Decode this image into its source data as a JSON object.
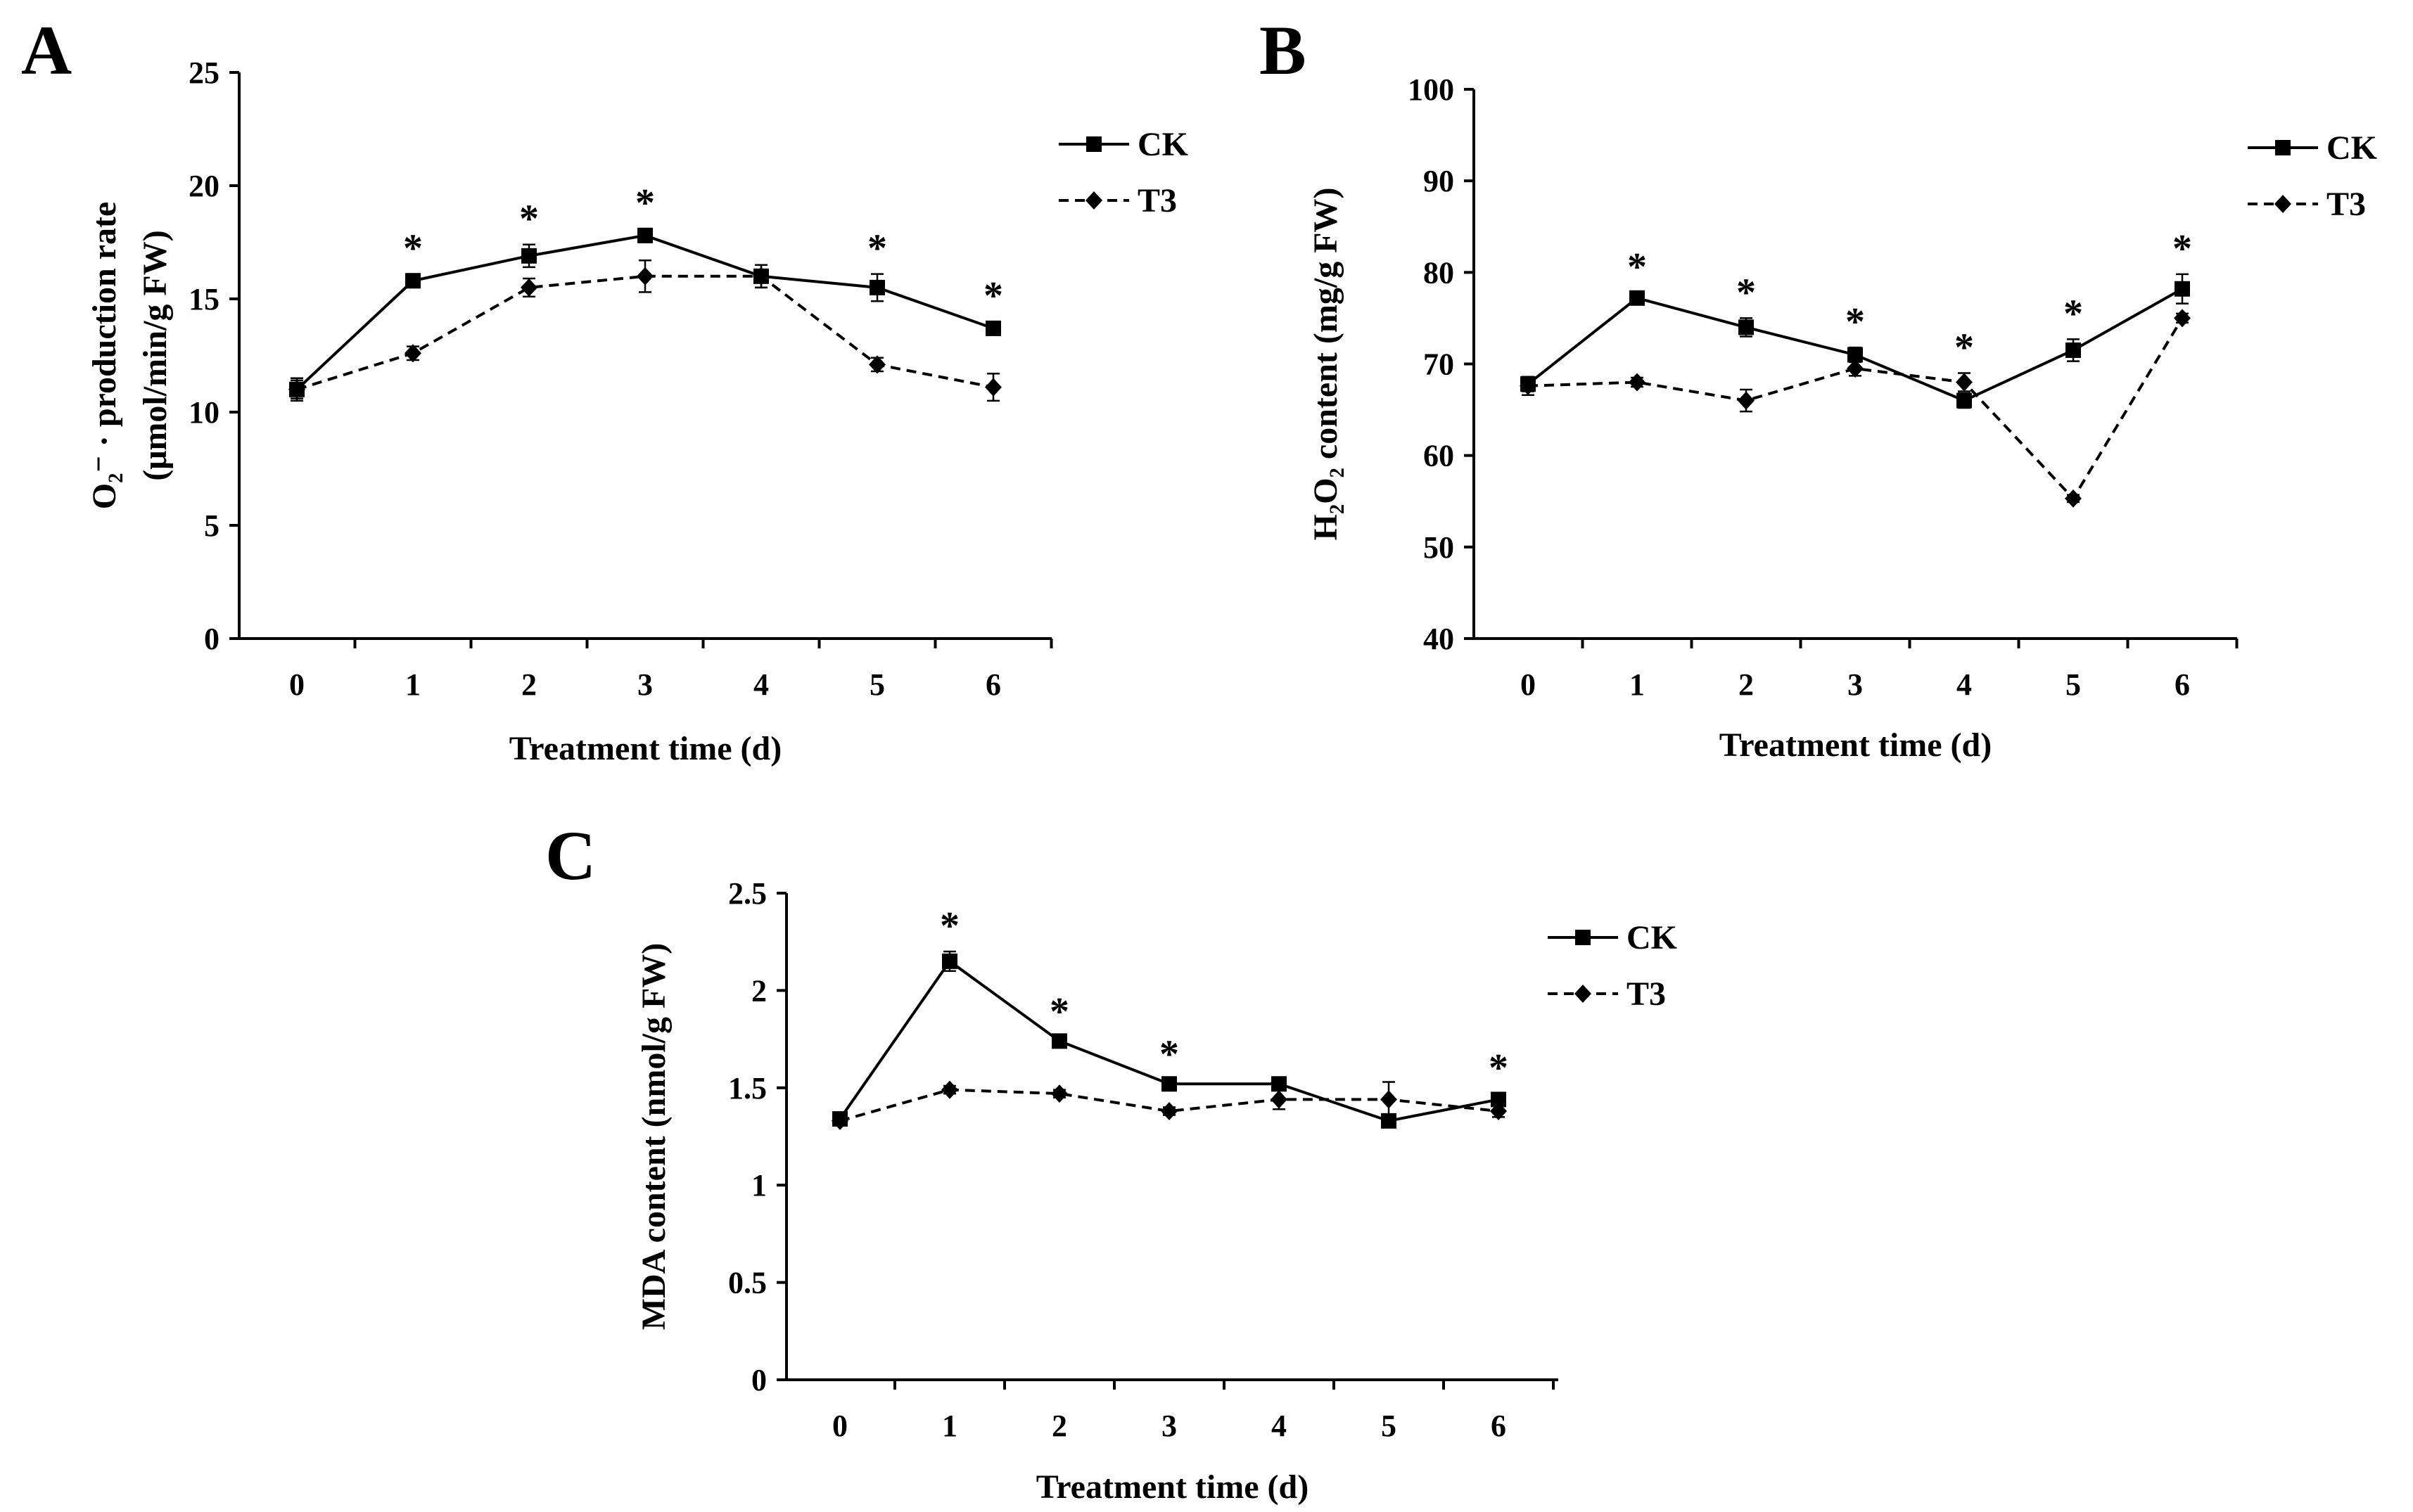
{
  "chart_data": [
    {
      "panel": "A",
      "type": "line",
      "x": [
        0,
        1,
        2,
        3,
        4,
        5,
        6
      ],
      "xlabel": "Treatment time (d)",
      "ylabel_line1": "O₂⁻ · production rate",
      "ylabel_line2": "(μmol/min/g FW)",
      "ylim": [
        0,
        25
      ],
      "yticks": [
        0,
        5,
        10,
        15,
        20,
        25
      ],
      "series": [
        {
          "name": "CK",
          "style": "solid",
          "marker": "square",
          "values": [
            11.0,
            15.8,
            16.9,
            17.8,
            16.0,
            15.5,
            13.7
          ],
          "errors": [
            0.5,
            0.3,
            0.5,
            0.3,
            0.5,
            0.6,
            0.3
          ]
        },
        {
          "name": "T3",
          "style": "dashed",
          "marker": "diamond",
          "values": [
            11.0,
            12.6,
            15.5,
            16.0,
            16.0,
            12.1,
            11.1
          ],
          "errors": [
            0.4,
            0.3,
            0.4,
            0.7,
            0.5,
            0.3,
            0.6
          ]
        }
      ],
      "significance_marker": "*",
      "significant": [
        1,
        2,
        3,
        5,
        6
      ],
      "legend_position": "top-right"
    },
    {
      "panel": "B",
      "type": "line",
      "x": [
        0,
        1,
        2,
        3,
        4,
        5,
        6
      ],
      "xlabel": "Treatment time (d)",
      "ylabel": "H₂O₂ content (mg/g FW)",
      "ylim": [
        40,
        100
      ],
      "yticks": [
        40,
        50,
        60,
        70,
        80,
        90,
        100
      ],
      "series": [
        {
          "name": "CK",
          "style": "solid",
          "marker": "square",
          "values": [
            67.8,
            77.2,
            74.0,
            71.0,
            66.0,
            71.5,
            78.2
          ],
          "errors": [
            0.8,
            0.6,
            1.0,
            0.8,
            0.8,
            1.2,
            1.6
          ]
        },
        {
          "name": "T3",
          "style": "dashed",
          "marker": "diamond",
          "values": [
            67.6,
            68.0,
            66.0,
            69.5,
            68.0,
            55.3,
            75.0
          ],
          "errors": [
            1.0,
            0.5,
            1.2,
            0.8,
            1.0,
            0.4,
            0.5
          ]
        }
      ],
      "significance_marker": "*",
      "significant": [
        1,
        2,
        3,
        4,
        5,
        6
      ],
      "legend_position": "top-right"
    },
    {
      "panel": "C",
      "type": "line",
      "x": [
        0,
        1,
        2,
        3,
        4,
        5,
        6
      ],
      "xlabel": "Treatment time (d)",
      "ylabel": "MDA content (nmol/g FW)",
      "ylim": [
        0,
        2.5
      ],
      "yticks": [
        "0",
        "0.5",
        "1",
        "1.5",
        "2",
        "2.5"
      ],
      "series": [
        {
          "name": "CK",
          "style": "solid",
          "marker": "square",
          "values": [
            1.34,
            2.15,
            1.74,
            1.52,
            1.52,
            1.33,
            1.44
          ],
          "errors": [
            0.03,
            0.05,
            0.02,
            0.02,
            0.03,
            0.02,
            0.03
          ]
        },
        {
          "name": "T3",
          "style": "dashed",
          "marker": "diamond",
          "values": [
            1.33,
            1.49,
            1.47,
            1.38,
            1.44,
            1.44,
            1.38
          ],
          "errors": [
            0.02,
            0.02,
            0.02,
            0.02,
            0.05,
            0.09,
            0.03
          ]
        }
      ],
      "significance_marker": "*",
      "significant": [
        1,
        2,
        3,
        6
      ],
      "legend_position": "top-right"
    }
  ]
}
